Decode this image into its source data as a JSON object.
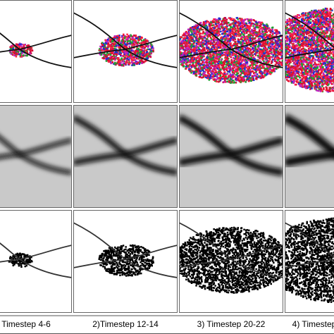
{
  "captions": [
    "Timestep 4-6",
    "2)Timestep 12-14",
    "3) Timestep 20-22",
    "4) Timestep"
  ]
}
